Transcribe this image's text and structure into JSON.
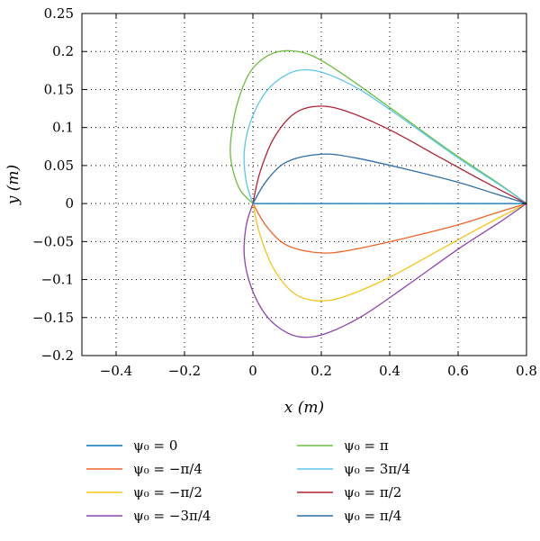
{
  "chart_data": {
    "type": "line",
    "title": "",
    "xlabel": "x (m)",
    "ylabel": "y (m)",
    "xlim": [
      -0.5,
      0.8
    ],
    "ylim": [
      -0.2,
      0.25
    ],
    "x_ticks": [
      -0.4,
      -0.2,
      0,
      0.2,
      0.4,
      0.6,
      0.8
    ],
    "x_tick_labels": [
      "−0.4",
      "−0.2",
      "0",
      "0.2",
      "0.4",
      "0.6",
      "0.8"
    ],
    "y_ticks": [
      0.25,
      0.2,
      0.15,
      0.1,
      0.05,
      0,
      -0.05,
      -0.1,
      -0.15,
      -0.2
    ],
    "y_tick_labels": [
      "0.25",
      "0.2",
      "0.15",
      "0.1",
      "0.05",
      "0",
      "−0.05",
      "−0.1",
      "−0.15",
      "−0.2"
    ],
    "grid": true,
    "legend_position": "below",
    "series": [
      {
        "name": "ψ₀ = 0",
        "color": "#0072bd",
        "points": [
          [
            0,
            0
          ],
          [
            0.2,
            0
          ],
          [
            0.4,
            0
          ],
          [
            0.6,
            0
          ],
          [
            0.8,
            0
          ]
        ]
      },
      {
        "name": "ψ₀ = −π/4",
        "color": "#f0642a",
        "points": [
          [
            0,
            0
          ],
          [
            0.04,
            -0.03
          ],
          [
            0.1,
            -0.055
          ],
          [
            0.2,
            -0.065
          ],
          [
            0.3,
            -0.06
          ],
          [
            0.45,
            -0.045
          ],
          [
            0.6,
            -0.028
          ],
          [
            0.7,
            -0.014
          ],
          [
            0.8,
            0
          ]
        ]
      },
      {
        "name": "ψ₀ = −π/2",
        "color": "#f5c518",
        "points": [
          [
            0,
            0
          ],
          [
            0.02,
            -0.04
          ],
          [
            0.06,
            -0.085
          ],
          [
            0.12,
            -0.118
          ],
          [
            0.19,
            -0.128
          ],
          [
            0.27,
            -0.122
          ],
          [
            0.4,
            -0.097
          ],
          [
            0.55,
            -0.06
          ],
          [
            0.68,
            -0.028
          ],
          [
            0.8,
            0
          ]
        ]
      },
      {
        "name": "ψ₀ = −3π/4",
        "color": "#8e44ad",
        "points": [
          [
            0,
            0
          ],
          [
            -0.02,
            -0.03
          ],
          [
            -0.025,
            -0.07
          ],
          [
            -0.005,
            -0.11
          ],
          [
            0.04,
            -0.148
          ],
          [
            0.1,
            -0.17
          ],
          [
            0.155,
            -0.176
          ],
          [
            0.22,
            -0.17
          ],
          [
            0.32,
            -0.148
          ],
          [
            0.45,
            -0.108
          ],
          [
            0.6,
            -0.06
          ],
          [
            0.72,
            -0.025
          ],
          [
            0.8,
            0
          ]
        ]
      },
      {
        "name": "ψ₀ = π",
        "color": "#6cbf3f",
        "points": [
          [
            0,
            0
          ],
          [
            -0.04,
            0.02
          ],
          [
            -0.065,
            0.06
          ],
          [
            -0.06,
            0.1
          ],
          [
            -0.04,
            0.14
          ],
          [
            -0.005,
            0.175
          ],
          [
            0.05,
            0.196
          ],
          [
            0.11,
            0.201
          ],
          [
            0.18,
            0.193
          ],
          [
            0.28,
            0.165
          ],
          [
            0.42,
            0.12
          ],
          [
            0.58,
            0.068
          ],
          [
            0.72,
            0.026
          ],
          [
            0.8,
            0
          ]
        ]
      },
      {
        "name": "ψ₀ = 3π/4",
        "color": "#5bc8ec",
        "points": [
          [
            0,
            0
          ],
          [
            -0.02,
            0.03
          ],
          [
            -0.025,
            0.07
          ],
          [
            -0.005,
            0.11
          ],
          [
            0.04,
            0.148
          ],
          [
            0.1,
            0.17
          ],
          [
            0.155,
            0.176
          ],
          [
            0.22,
            0.17
          ],
          [
            0.32,
            0.148
          ],
          [
            0.45,
            0.108
          ],
          [
            0.6,
            0.06
          ],
          [
            0.72,
            0.025
          ],
          [
            0.8,
            0
          ]
        ]
      },
      {
        "name": "ψ₀ = π/2",
        "color": "#b22234",
        "points": [
          [
            0,
            0
          ],
          [
            0.02,
            0.04
          ],
          [
            0.06,
            0.085
          ],
          [
            0.12,
            0.118
          ],
          [
            0.19,
            0.128
          ],
          [
            0.27,
            0.122
          ],
          [
            0.4,
            0.097
          ],
          [
            0.55,
            0.06
          ],
          [
            0.68,
            0.028
          ],
          [
            0.8,
            0
          ]
        ]
      },
      {
        "name": "ψ₀ = π/4",
        "color": "#2e6fa8",
        "points": [
          [
            0,
            0
          ],
          [
            0.04,
            0.03
          ],
          [
            0.1,
            0.055
          ],
          [
            0.2,
            0.065
          ],
          [
            0.3,
            0.06
          ],
          [
            0.45,
            0.045
          ],
          [
            0.6,
            0.028
          ],
          [
            0.7,
            0.014
          ],
          [
            0.8,
            0
          ]
        ]
      }
    ]
  }
}
